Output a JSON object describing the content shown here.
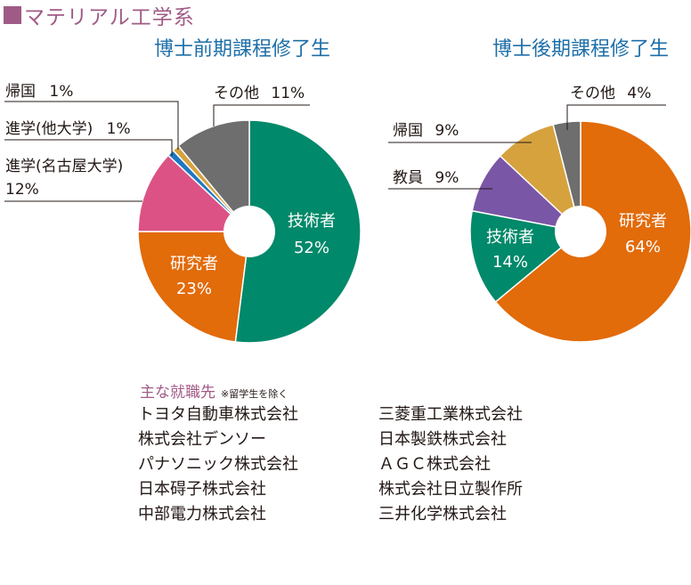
{
  "header": {
    "title": "マテリアル工学系"
  },
  "chart_data": [
    {
      "type": "pie",
      "title": "博士前期課程修了生",
      "colors": [
        "#00896a",
        "#e26b0a",
        "#dc5284",
        "#1e78c2",
        "#d6a23e",
        "#6e6e6e"
      ],
      "slices": [
        {
          "label": "技術者",
          "value_text": "52%",
          "value": 52
        },
        {
          "label": "研究者",
          "value_text": "23%",
          "value": 23
        },
        {
          "label": "進学(名古屋大学)",
          "value_text": "12%",
          "value": 12
        },
        {
          "label": "進学(他大学)",
          "value_text": "1%",
          "value": 1
        },
        {
          "label": "帰国",
          "value_text": "1%",
          "value": 1
        },
        {
          "label": "その他",
          "value_text": "11%",
          "value": 11
        }
      ]
    },
    {
      "type": "pie",
      "title": "博士後期課程修了生",
      "colors": [
        "#e26b0a",
        "#00896a",
        "#7a56a6",
        "#d6a23e",
        "#6e6e6e"
      ],
      "slices": [
        {
          "label": "研究者",
          "value_text": "64%",
          "value": 64
        },
        {
          "label": "技術者",
          "value_text": "14%",
          "value": 14
        },
        {
          "label": "教員",
          "value_text": "9%",
          "value": 9
        },
        {
          "label": "帰国",
          "value_text": "9%",
          "value": 9
        },
        {
          "label": "その他",
          "value_text": "4%",
          "value": 4
        }
      ]
    }
  ],
  "careers": {
    "title": "主な就職先",
    "note": "※留学生を除く",
    "companies": [
      "トヨタ自動車株式会社",
      "三菱重工業株式会社",
      "株式会社デンソー",
      "日本製鉄株式会社",
      "パナソニック株式会社",
      "ＡＧＣ株式会社",
      "日本碍子株式会社",
      "株式会社日立製作所",
      "中部電力株式会社",
      "三井化学株式会社"
    ]
  }
}
